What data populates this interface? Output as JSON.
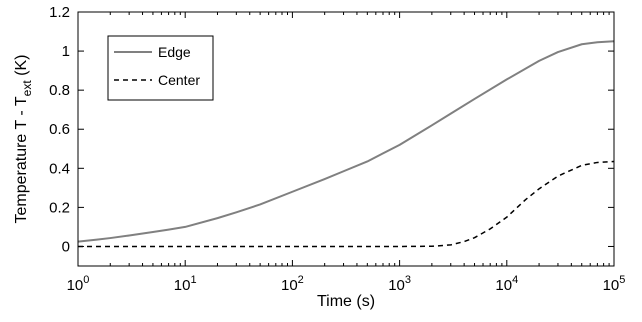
{
  "chart_data": {
    "type": "line",
    "title": "",
    "xlabel": "Time (s)",
    "ylabel": "Temperature T - T",
    "ylabel_sub": "ext",
    "ylabel_unit": " (K)",
    "xscale": "log",
    "xlim": [
      1,
      100000
    ],
    "ylim": [
      -0.1,
      1.2
    ],
    "x_ticks": [
      {
        "value": 1,
        "base": "10",
        "exp": "0"
      },
      {
        "value": 10,
        "base": "10",
        "exp": "1"
      },
      {
        "value": 100,
        "base": "10",
        "exp": "2"
      },
      {
        "value": 1000,
        "base": "10",
        "exp": "3"
      },
      {
        "value": 10000,
        "base": "10",
        "exp": "4"
      },
      {
        "value": 100000,
        "base": "10",
        "exp": "5"
      }
    ],
    "y_ticks": [
      {
        "value": 0,
        "label": "0"
      },
      {
        "value": 0.2,
        "label": "0.2"
      },
      {
        "value": 0.4,
        "label": "0.4"
      },
      {
        "value": 0.6,
        "label": "0.6"
      },
      {
        "value": 0.8,
        "label": "0.8"
      },
      {
        "value": 1.0,
        "label": "1"
      },
      {
        "value": 1.2,
        "label": "1.2"
      }
    ],
    "grid": false,
    "legend": "top-left",
    "series": [
      {
        "name": "Edge",
        "color": "#808080",
        "style": "solid",
        "x": [
          1,
          1.5,
          2,
          3,
          5,
          7,
          10,
          20,
          30,
          50,
          100,
          200,
          300,
          500,
          1000,
          2000,
          3000,
          5000,
          10000,
          20000,
          30000,
          50000,
          70000,
          100000
        ],
        "y": [
          0.025,
          0.035,
          0.043,
          0.056,
          0.074,
          0.086,
          0.1,
          0.145,
          0.175,
          0.215,
          0.28,
          0.345,
          0.385,
          0.435,
          0.52,
          0.62,
          0.68,
          0.755,
          0.855,
          0.95,
          0.995,
          1.035,
          1.045,
          1.05
        ]
      },
      {
        "name": "Center",
        "color": "#000000",
        "style": "dashed",
        "x": [
          1,
          10,
          100,
          1000,
          2000,
          3000,
          4000,
          5000,
          7000,
          10000,
          15000,
          20000,
          30000,
          50000,
          70000,
          100000
        ],
        "y": [
          0,
          0,
          0,
          0,
          0.001,
          0.008,
          0.025,
          0.045,
          0.09,
          0.15,
          0.24,
          0.295,
          0.36,
          0.415,
          0.43,
          0.435
        ]
      }
    ]
  }
}
